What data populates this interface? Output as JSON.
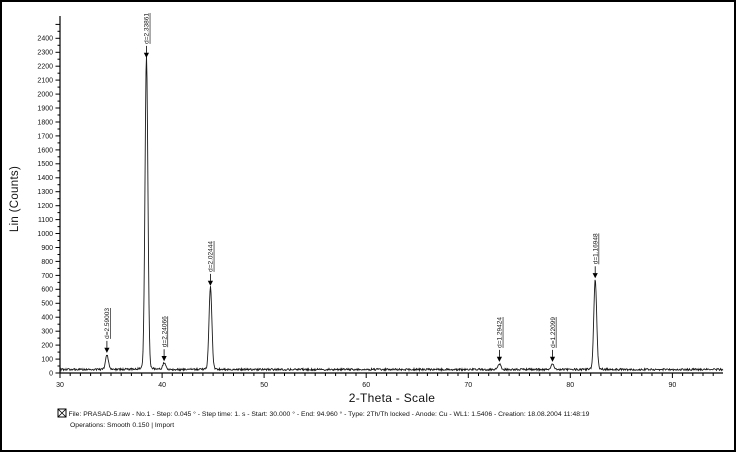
{
  "chart_data": {
    "type": "line",
    "title": "",
    "xlabel": "2-Theta - Scale",
    "ylabel": "Lin (Counts)",
    "x_axis": {
      "min": 30,
      "max": 94.96,
      "major_ticks": [
        30,
        40,
        50,
        60,
        70,
        80,
        90
      ],
      "minor_step_deg": 1
    },
    "y_axis": {
      "min": 0,
      "max": 2560,
      "label_min": 0,
      "label_max": 2400,
      "label_step": 100,
      "minor_step": 50
    },
    "grid": "off",
    "legend": "none",
    "baseline_counts": 25,
    "peaks": [
      {
        "two_theta": 34.6,
        "intensity": 130,
        "d_label": "d=2.59003"
      },
      {
        "two_theta": 38.47,
        "intensity": 2245,
        "d_label": "d=2.33861"
      },
      {
        "two_theta": 40.2,
        "intensity": 70,
        "d_label": "d=2.24066"
      },
      {
        "two_theta": 44.74,
        "intensity": 610,
        "d_label": "d=2.02444"
      },
      {
        "two_theta": 73.05,
        "intensity": 65,
        "d_label": "d=1.29424"
      },
      {
        "two_theta": 78.25,
        "intensity": 65,
        "d_label": "d=1.22099"
      },
      {
        "two_theta": 82.44,
        "intensity": 665,
        "d_label": "d=1.16948"
      }
    ]
  },
  "footer": {
    "file_line": "File: PRASAD-5.raw - No.1 - Step: 0.045 ° - Step time: 1. s - Start: 30.000 ° - End: 94.960 ° - Type: 2Th/Th locked - Anode: Cu - WL1: 1.5406 - Creation: 18.08.2004 11:48:19",
    "operations_line": "Operations: Smooth 0.150 | Import"
  },
  "colors": {
    "trace": "#1a1a1a",
    "frame": "#000000",
    "background": "#ffffff"
  }
}
